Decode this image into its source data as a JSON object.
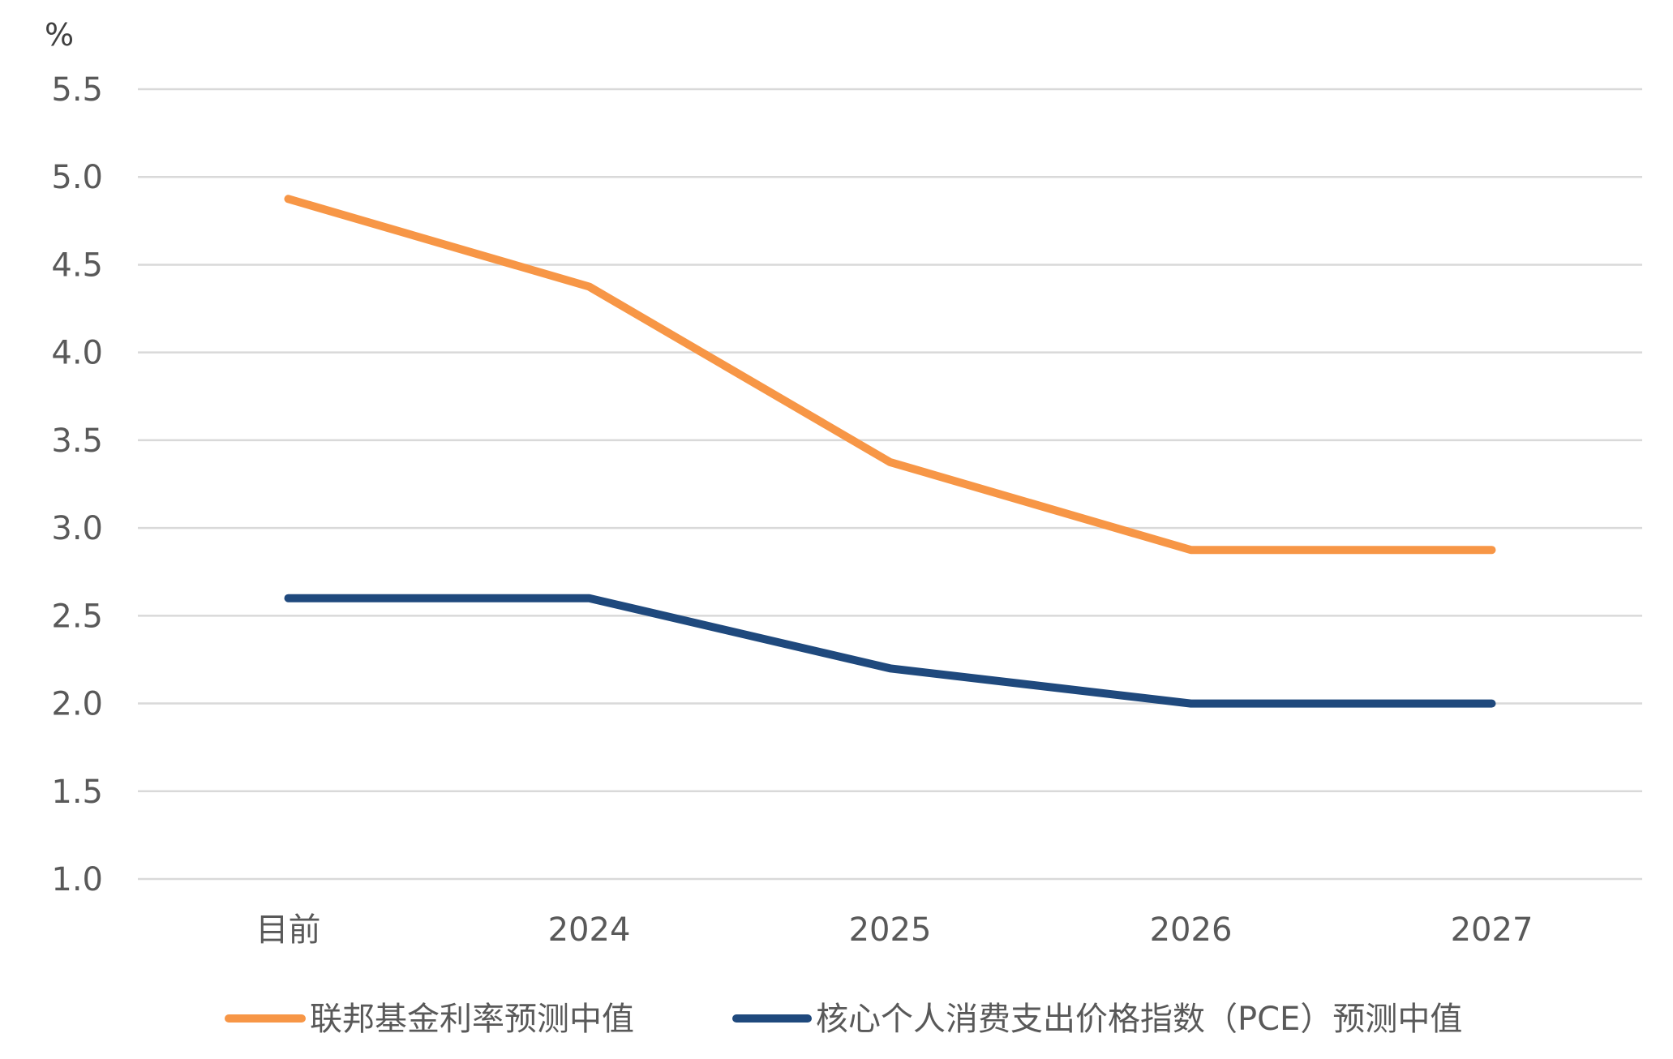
{
  "chart_data": {
    "type": "line",
    "title": "",
    "xlabel": "",
    "ylabel": "%",
    "ylim": [
      1.0,
      5.5
    ],
    "y_ticks": [
      "5.5",
      "5.0",
      "4.5",
      "4.0",
      "3.5",
      "3.0",
      "2.5",
      "2.0",
      "1.5",
      "1.0"
    ],
    "categories": [
      "目前",
      "2024",
      "2025",
      "2026",
      "2027"
    ],
    "grid": true,
    "legend_position": "bottom",
    "series": [
      {
        "name": "联邦基金利率预测中值",
        "color": "#f79646",
        "values": [
          4.875,
          4.375,
          3.375,
          2.875,
          2.875
        ]
      },
      {
        "name": "核心个人消费支出价格指数（PCE）预测中值",
        "color": "#1f497d",
        "values": [
          2.6,
          2.6,
          2.2,
          2.0,
          2.0
        ]
      }
    ]
  }
}
